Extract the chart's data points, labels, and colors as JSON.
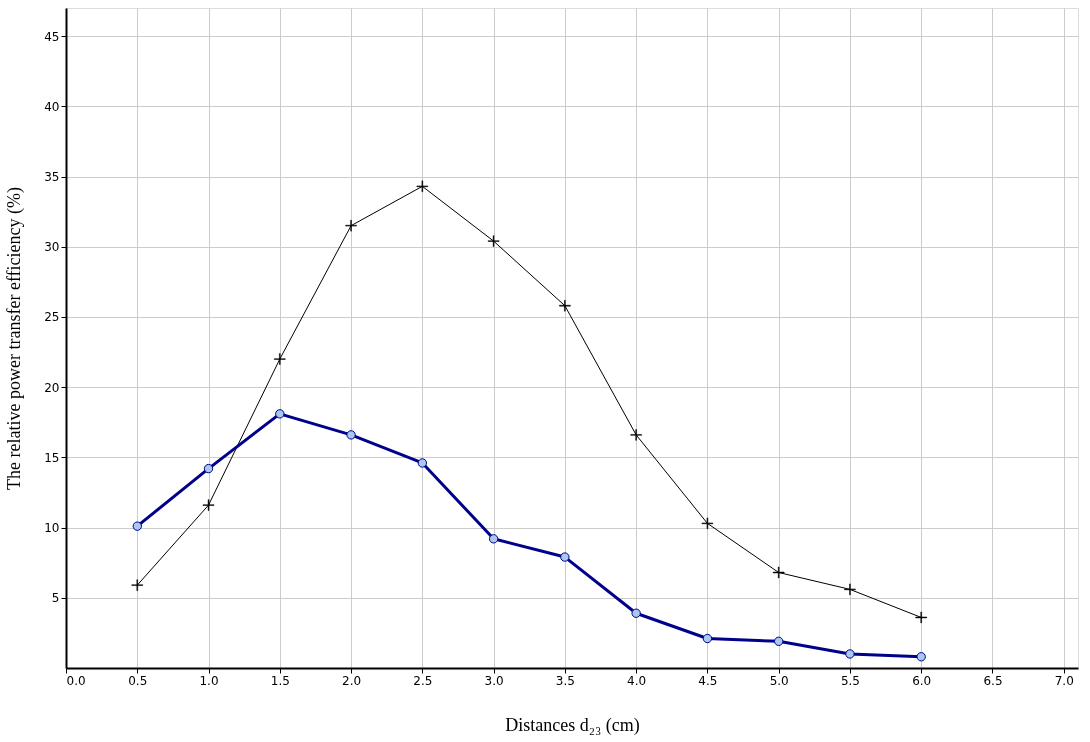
{
  "chart_data": {
    "type": "line",
    "xlabel": "Distances d₂₃ (cm)",
    "ylabel": "The relative power transfer efficiency (%)",
    "x": [
      0.5,
      1.0,
      1.5,
      2.0,
      2.5,
      3.0,
      3.5,
      4.0,
      4.5,
      5.0,
      5.5,
      6.0
    ],
    "series": [
      {
        "color": "#000000",
        "marker": "cross",
        "values": [
          5.9,
          11.6,
          22.0,
          31.5,
          34.3,
          30.4,
          25.8,
          16.6,
          10.3,
          6.8,
          5.6,
          3.6
        ]
      },
      {
        "color": "#00008b",
        "marker": "circle",
        "values": [
          10.1,
          14.2,
          18.1,
          16.6,
          14.6,
          9.2,
          7.9,
          3.9,
          2.1,
          1.9,
          1.0,
          0.8
        ]
      }
    ],
    "xlim": [
      0,
      7.1
    ],
    "xticks": [
      {
        "value": 0,
        "label": "0.0"
      },
      0.5,
      {
        "value": 1,
        "label": "1.0"
      },
      1.5,
      {
        "value": 2,
        "label": "2.0"
      },
      2.5,
      {
        "value": 3,
        "label": "3.0"
      },
      3.5,
      {
        "value": 4,
        "label": "4.0"
      },
      4.5,
      {
        "value": 5,
        "label": "5.0"
      },
      5.5,
      {
        "value": 6,
        "label": "6.0"
      },
      6.5,
      {
        "value": 7,
        "label": "7.0"
      }
    ],
    "ylim": [
      0,
      47
    ],
    "yticks": [
      5,
      10,
      15,
      20,
      25,
      30,
      35,
      40,
      45
    ],
    "grid": true,
    "legend": false
  }
}
